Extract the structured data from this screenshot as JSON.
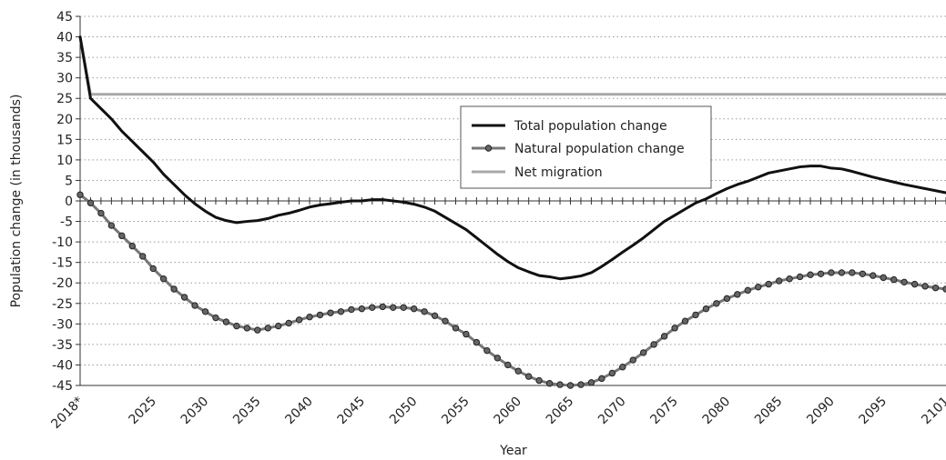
{
  "chart_data": {
    "type": "line",
    "title": "",
    "xlabel": "Year",
    "ylabel": "Population change (in thousands)",
    "xlim": [
      2018,
      2101
    ],
    "ylim": [
      -45,
      45
    ],
    "y_ticks": [
      45,
      40,
      35,
      30,
      25,
      20,
      15,
      10,
      5,
      0,
      -5,
      -10,
      -15,
      -20,
      -25,
      -30,
      -35,
      -40,
      -45
    ],
    "x_ticks": [
      {
        "value": 2018,
        "label": "2018*"
      },
      {
        "value": 2025,
        "label": "2025"
      },
      {
        "value": 2030,
        "label": "2030"
      },
      {
        "value": 2035,
        "label": "2035"
      },
      {
        "value": 2040,
        "label": "2040"
      },
      {
        "value": 2045,
        "label": "2045"
      },
      {
        "value": 2050,
        "label": "2050"
      },
      {
        "value": 2055,
        "label": "2055"
      },
      {
        "value": 2060,
        "label": "2060"
      },
      {
        "value": 2065,
        "label": "2065"
      },
      {
        "value": 2070,
        "label": "2070"
      },
      {
        "value": 2075,
        "label": "2075"
      },
      {
        "value": 2080,
        "label": "2080"
      },
      {
        "value": 2085,
        "label": "2085"
      },
      {
        "value": 2090,
        "label": "2090"
      },
      {
        "value": 2095,
        "label": "2095"
      },
      {
        "value": 2101,
        "label": "2101"
      }
    ],
    "grid": "horizontal dotted",
    "legend_position": "center-right",
    "series": [
      {
        "name": "Total population change",
        "color": "#111111",
        "marker": "none",
        "points": [
          [
            2018,
            40
          ],
          [
            2019,
            25
          ],
          [
            2020,
            22.5
          ],
          [
            2021,
            20
          ],
          [
            2022,
            17
          ],
          [
            2023,
            14.5
          ],
          [
            2024,
            12
          ],
          [
            2025,
            9.5
          ],
          [
            2026,
            6.5
          ],
          [
            2027,
            4
          ],
          [
            2028,
            1.5
          ],
          [
            2029,
            -0.7
          ],
          [
            2030,
            -2.5
          ],
          [
            2031,
            -4
          ],
          [
            2032,
            -4.8
          ],
          [
            2033,
            -5.3
          ],
          [
            2034,
            -5
          ],
          [
            2035,
            -4.8
          ],
          [
            2036,
            -4.3
          ],
          [
            2037,
            -3.5
          ],
          [
            2038,
            -3
          ],
          [
            2039,
            -2.3
          ],
          [
            2040,
            -1.5
          ],
          [
            2041,
            -1
          ],
          [
            2042,
            -0.7
          ],
          [
            2043,
            -0.3
          ],
          [
            2044,
            0
          ],
          [
            2045,
            0
          ],
          [
            2046,
            0.3
          ],
          [
            2047,
            0.3
          ],
          [
            2048,
            0
          ],
          [
            2049,
            -0.3
          ],
          [
            2050,
            -0.8
          ],
          [
            2051,
            -1.5
          ],
          [
            2052,
            -2.5
          ],
          [
            2053,
            -4
          ],
          [
            2054,
            -5.5
          ],
          [
            2055,
            -7
          ],
          [
            2056,
            -9
          ],
          [
            2057,
            -11
          ],
          [
            2058,
            -13
          ],
          [
            2059,
            -14.8
          ],
          [
            2060,
            -16.3
          ],
          [
            2061,
            -17.3
          ],
          [
            2062,
            -18.2
          ],
          [
            2063,
            -18.5
          ],
          [
            2064,
            -19
          ],
          [
            2065,
            -18.7
          ],
          [
            2066,
            -18.3
          ],
          [
            2067,
            -17.5
          ],
          [
            2068,
            -16
          ],
          [
            2069,
            -14.3
          ],
          [
            2070,
            -12.5
          ],
          [
            2071,
            -10.8
          ],
          [
            2072,
            -9
          ],
          [
            2073,
            -7
          ],
          [
            2074,
            -5
          ],
          [
            2075,
            -3.5
          ],
          [
            2076,
            -2
          ],
          [
            2077,
            -0.5
          ],
          [
            2078,
            0.5
          ],
          [
            2079,
            1.8
          ],
          [
            2080,
            3
          ],
          [
            2081,
            4
          ],
          [
            2082,
            4.8
          ],
          [
            2083,
            5.8
          ],
          [
            2084,
            6.8
          ],
          [
            2085,
            7.3
          ],
          [
            2086,
            7.8
          ],
          [
            2087,
            8.3
          ],
          [
            2088,
            8.5
          ],
          [
            2089,
            8.5
          ],
          [
            2090,
            8
          ],
          [
            2091,
            7.8
          ],
          [
            2092,
            7.2
          ],
          [
            2093,
            6.5
          ],
          [
            2094,
            5.8
          ],
          [
            2095,
            5.2
          ],
          [
            2096,
            4.6
          ],
          [
            2097,
            4
          ],
          [
            2098,
            3.5
          ],
          [
            2099,
            3
          ],
          [
            2100,
            2.5
          ],
          [
            2101,
            2
          ]
        ]
      },
      {
        "name": "Natural population change",
        "color": "#777777",
        "marker": "circle",
        "points": [
          [
            2018,
            1.5
          ],
          [
            2019,
            -0.5
          ],
          [
            2020,
            -3
          ],
          [
            2021,
            -6
          ],
          [
            2022,
            -8.5
          ],
          [
            2023,
            -11
          ],
          [
            2024,
            -13.5
          ],
          [
            2025,
            -16.5
          ],
          [
            2026,
            -19
          ],
          [
            2027,
            -21.5
          ],
          [
            2028,
            -23.5
          ],
          [
            2029,
            -25.5
          ],
          [
            2030,
            -27
          ],
          [
            2031,
            -28.5
          ],
          [
            2032,
            -29.5
          ],
          [
            2033,
            -30.5
          ],
          [
            2034,
            -31
          ],
          [
            2035,
            -31.5
          ],
          [
            2036,
            -31
          ],
          [
            2037,
            -30.5
          ],
          [
            2038,
            -29.8
          ],
          [
            2039,
            -29
          ],
          [
            2040,
            -28.3
          ],
          [
            2041,
            -27.8
          ],
          [
            2042,
            -27.3
          ],
          [
            2043,
            -27
          ],
          [
            2044,
            -26.5
          ],
          [
            2045,
            -26.3
          ],
          [
            2046,
            -26
          ],
          [
            2047,
            -25.8
          ],
          [
            2048,
            -26
          ],
          [
            2049,
            -26
          ],
          [
            2050,
            -26.3
          ],
          [
            2051,
            -27
          ],
          [
            2052,
            -28
          ],
          [
            2053,
            -29.3
          ],
          [
            2054,
            -31
          ],
          [
            2055,
            -32.5
          ],
          [
            2056,
            -34.5
          ],
          [
            2057,
            -36.5
          ],
          [
            2058,
            -38.3
          ],
          [
            2059,
            -40
          ],
          [
            2060,
            -41.5
          ],
          [
            2061,
            -42.8
          ],
          [
            2062,
            -43.8
          ],
          [
            2063,
            -44.5
          ],
          [
            2064,
            -44.8
          ],
          [
            2065,
            -45
          ],
          [
            2066,
            -44.8
          ],
          [
            2067,
            -44.3
          ],
          [
            2068,
            -43.3
          ],
          [
            2069,
            -42
          ],
          [
            2070,
            -40.5
          ],
          [
            2071,
            -38.8
          ],
          [
            2072,
            -37
          ],
          [
            2073,
            -35
          ],
          [
            2074,
            -33
          ],
          [
            2075,
            -31
          ],
          [
            2076,
            -29.3
          ],
          [
            2077,
            -27.8
          ],
          [
            2078,
            -26.3
          ],
          [
            2079,
            -25
          ],
          [
            2080,
            -23.8
          ],
          [
            2081,
            -22.8
          ],
          [
            2082,
            -21.8
          ],
          [
            2083,
            -21
          ],
          [
            2084,
            -20.3
          ],
          [
            2085,
            -19.5
          ],
          [
            2086,
            -19
          ],
          [
            2087,
            -18.5
          ],
          [
            2088,
            -18
          ],
          [
            2089,
            -17.8
          ],
          [
            2090,
            -17.5
          ],
          [
            2091,
            -17.5
          ],
          [
            2092,
            -17.5
          ],
          [
            2093,
            -17.8
          ],
          [
            2094,
            -18.2
          ],
          [
            2095,
            -18.7
          ],
          [
            2096,
            -19.2
          ],
          [
            2097,
            -19.8
          ],
          [
            2098,
            -20.3
          ],
          [
            2099,
            -20.8
          ],
          [
            2100,
            -21.2
          ],
          [
            2101,
            -21.5
          ]
        ]
      },
      {
        "name": "Net migration",
        "color": "#a8a8a8",
        "marker": "none",
        "points": [
          [
            2018,
            40
          ],
          [
            2019,
            26
          ],
          [
            2101,
            26
          ]
        ]
      }
    ]
  }
}
